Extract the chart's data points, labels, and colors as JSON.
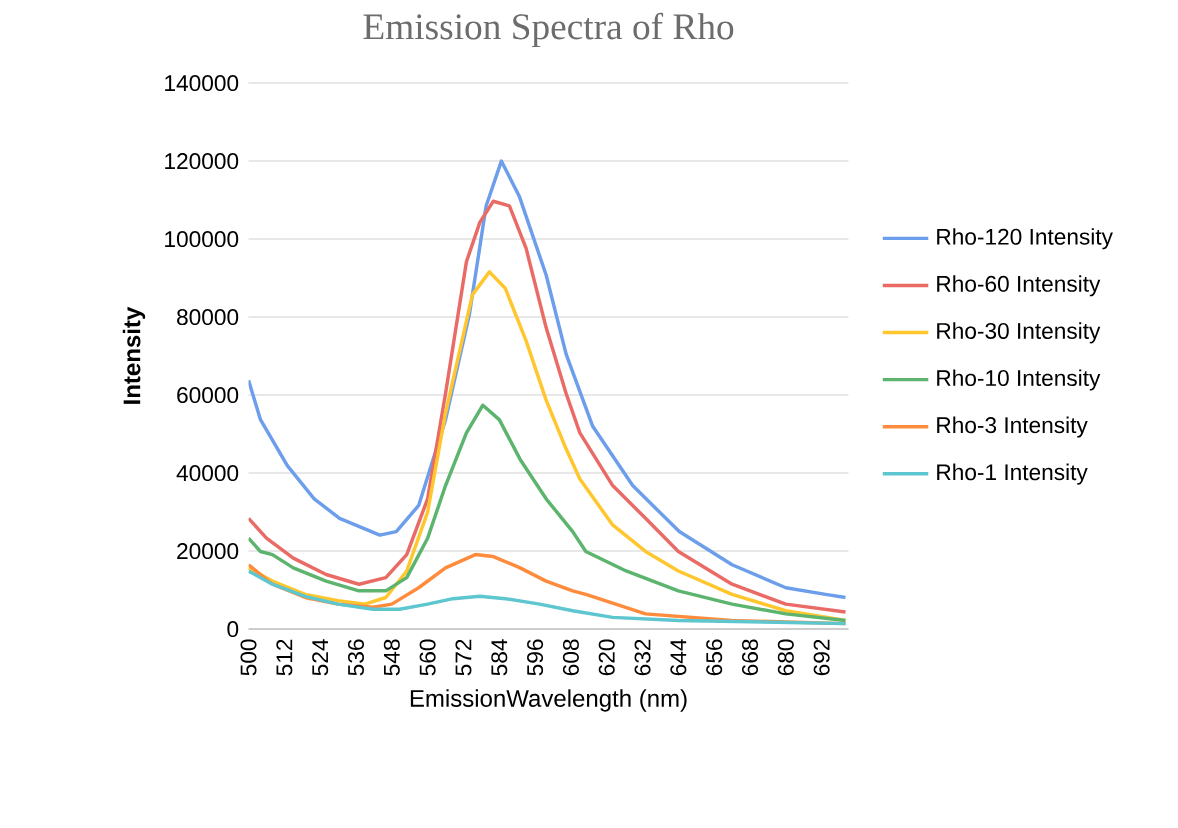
{
  "chart_data": {
    "type": "line",
    "title": "Emission Spectra of Rho",
    "xlabel": "EmissionWavelength (nm)",
    "ylabel": "Intensity",
    "xlim": [
      500,
      701
    ],
    "xticks": [
      500,
      512,
      524,
      536,
      548,
      560,
      572,
      584,
      596,
      608,
      620,
      632,
      644,
      656,
      668,
      680,
      692
    ],
    "ylim": [
      0,
      140000
    ],
    "yticks": [
      0,
      20000,
      40000,
      60000,
      80000,
      100000,
      120000,
      140000
    ],
    "grid": "y",
    "legend": "right",
    "marker": "none",
    "line_style": "solid",
    "series": [
      {
        "name": "Rho-120 Intensity",
        "color": "#6d9eeb",
        "x": [
          500,
          504,
          513,
          522,
          530.5,
          544,
          549.5,
          557,
          566,
          574,
          579.6,
          584.7,
          590.7,
          599.7,
          606.4,
          615.3,
          628.7,
          644.3,
          662,
          680,
          693.3,
          700
        ],
        "values": [
          63800,
          53700,
          41900,
          33400,
          28400,
          24100,
          25000,
          31700,
          53700,
          80700,
          108500,
          120000,
          111000,
          90800,
          70500,
          52000,
          36800,
          25000,
          16500,
          10600,
          8900,
          8100
        ]
      },
      {
        "name": "Rho-60 Intensity",
        "color": "#ea6b66",
        "x": [
          500,
          506,
          515,
          526,
          537,
          546,
          553,
          560,
          566,
          573,
          577.5,
          582,
          587.4,
          593,
          599.7,
          606.4,
          611,
          622,
          633,
          644,
          662,
          680,
          700
        ],
        "values": [
          28400,
          23300,
          18200,
          14000,
          11500,
          13200,
          19100,
          33400,
          60400,
          94200,
          104300,
          109700,
          108500,
          97600,
          77300,
          60400,
          50300,
          36800,
          28400,
          19900,
          11500,
          6400,
          4400
        ]
      },
      {
        "name": "Rho-30 Intensity",
        "color": "#ffc62e",
        "x": [
          500,
          508,
          519,
          530,
          539,
          546,
          553,
          560,
          566,
          575,
          580.7,
          586,
          593,
          599.7,
          606,
          611,
          622,
          633,
          644,
          662,
          680,
          700
        ],
        "values": [
          15700,
          12300,
          8900,
          7300,
          6400,
          8100,
          14900,
          30000,
          55400,
          85700,
          91600,
          87400,
          73900,
          58700,
          46900,
          38500,
          26700,
          19900,
          14900,
          8900,
          4700,
          2200
        ]
      },
      {
        "name": "Rho-10 Intensity",
        "color": "#5cb46e",
        "x": [
          500,
          504,
          508,
          515,
          526,
          537,
          546,
          553,
          560,
          566,
          573,
          578.5,
          584,
          591,
          599.7,
          608.6,
          613,
          626.5,
          644,
          662,
          680,
          700
        ],
        "values": [
          23300,
          19900,
          19100,
          15700,
          12300,
          9800,
          9800,
          13200,
          23300,
          36800,
          50300,
          57400,
          53700,
          43500,
          33400,
          25000,
          19900,
          14900,
          9800,
          6400,
          3900,
          2200
        ]
      },
      {
        "name": "Rho-3 Intensity",
        "color": "#ff8b3d",
        "x": [
          500,
          508,
          519,
          530,
          541.7,
          548,
          557,
          566,
          576,
          582,
          591,
          599.7,
          608.6,
          613,
          633,
          662,
          700
        ],
        "values": [
          16500,
          11500,
          8100,
          6400,
          5600,
          6400,
          10600,
          15700,
          19100,
          18600,
          15700,
          12300,
          9800,
          8900,
          3900,
          2200,
          1400
        ]
      },
      {
        "name": "Rho-1 Intensity",
        "color": "#5ec6cf",
        "x": [
          500,
          508,
          519,
          530,
          541.7,
          550.6,
          560,
          568.5,
          577.5,
          586,
          597.5,
          608.6,
          622,
          644,
          700
        ],
        "values": [
          14900,
          11500,
          8400,
          6400,
          5100,
          5100,
          6400,
          7800,
          8400,
          7800,
          6400,
          4700,
          3000,
          2200,
          1400
        ]
      }
    ]
  }
}
